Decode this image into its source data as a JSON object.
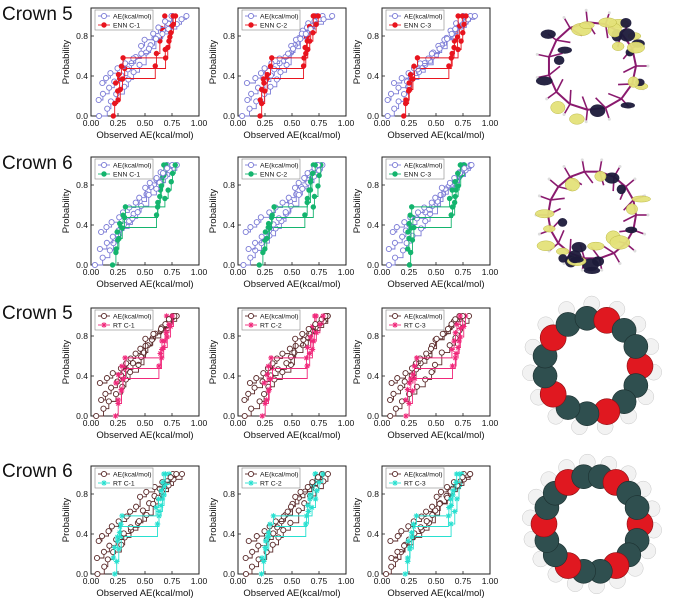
{
  "rows": [
    {
      "label": "Crown 5",
      "ref_series": "AE(kcal/mol)",
      "ref_color": "#7b7bd6",
      "ref_marker": "circle-open",
      "model_color": "#e8141e",
      "model_marker": "circle-filled",
      "models": [
        "ENN C-1",
        "ENN C-2",
        "ENN C-3"
      ],
      "molecule": "orbital"
    },
    {
      "label": "Crown 6",
      "ref_series": "AE(kcal/mol)",
      "ref_color": "#7b7bd6",
      "ref_marker": "circle-open",
      "model_color": "#14b46e",
      "model_marker": "circle-filled",
      "models": [
        "ENN C-1",
        "ENN C-2",
        "ENN C-3"
      ],
      "molecule": "orbital"
    },
    {
      "label": "Crown 5",
      "ref_series": "AE(kcal/mol)",
      "ref_color": "#5a2a2a",
      "ref_marker": "circle-open",
      "model_color": "#f0287a",
      "model_marker": "star",
      "models": [
        "RT C-1",
        "RT C-2",
        "RT C-3"
      ],
      "molecule": "spacefill-5"
    },
    {
      "label": "Crown 6",
      "ref_series": "AE(kcal/mol)",
      "ref_color": "#5a2a2a",
      "ref_marker": "circle-open",
      "model_color": "#28e0d0",
      "model_marker": "star",
      "models": [
        "RT C-1",
        "RT C-2",
        "RT C-3"
      ],
      "molecule": "spacefill-6"
    }
  ],
  "chart_data": [
    {
      "type": "line",
      "chart_type": "step-cdf",
      "xlabel": "Observed AE(kcal/mol)",
      "ylabel": "Probability",
      "xlim": [
        0,
        1
      ],
      "ylim": [
        0,
        1
      ],
      "xticks": [
        "0.00",
        "0.25",
        "0.50",
        "0.75",
        "1.00"
      ],
      "yticks": [
        "0.0",
        "0.4",
        "0.8"
      ],
      "ref_levels": [
        0,
        0.17,
        0.33,
        0.5,
        0.67,
        0.83,
        1.0
      ],
      "series": [
        {
          "name": "AE(kcal/mol)",
          "x": [
            0.02,
            0.05,
            0.08,
            0.11,
            0.14,
            0.18,
            0.22,
            0.26,
            0.3,
            0.34,
            0.38,
            0.45,
            0.55,
            0.65,
            0.7,
            0.74,
            0.78,
            0.82,
            0.86,
            0.9,
            0.94,
            0.97,
            1.0
          ]
        },
        {
          "name": "ENN C-1",
          "x": [
            0.2,
            0.22,
            0.24,
            0.26,
            0.28,
            0.72,
            0.75,
            0.78,
            0.8,
            0.85,
            0.88,
            0.92,
            0.95
          ]
        }
      ]
    }
  ]
}
